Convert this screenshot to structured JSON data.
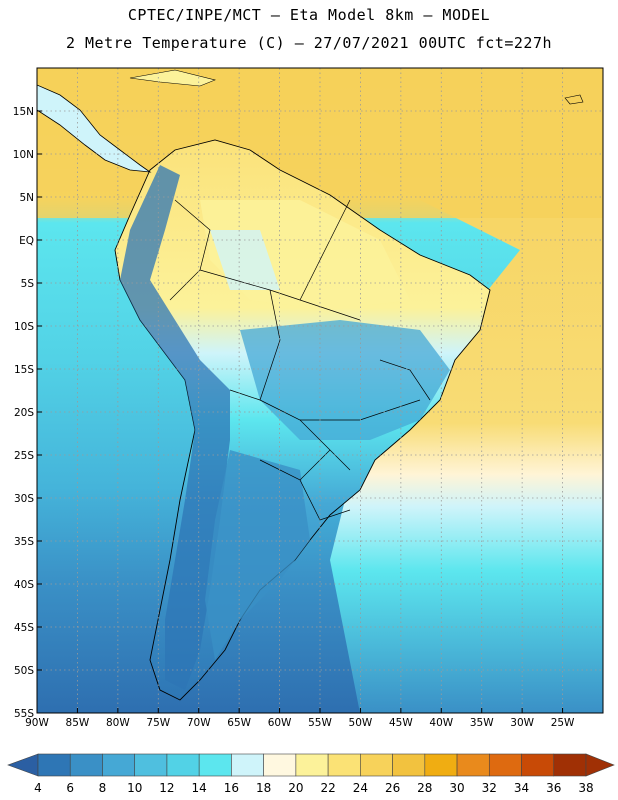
{
  "header": {
    "line1": "CPTEC/INPE/MCT —  Eta Model 8km — MODEL",
    "line2": "2 Metre Temperature (C) — 27/07/2021 00UTC fct=227h"
  },
  "map": {
    "lat_labels": [
      "15N",
      "10N",
      "5N",
      "EQ",
      "5S",
      "10S",
      "15S",
      "20S",
      "25S",
      "30S",
      "35S",
      "40S",
      "45S",
      "50S",
      "55S"
    ],
    "lat_values": [
      15,
      10,
      5,
      0,
      -5,
      -10,
      -15,
      -20,
      -25,
      -30,
      -35,
      -40,
      -45,
      -50,
      -55
    ],
    "lon_labels": [
      "90W",
      "85W",
      "80W",
      "75W",
      "70W",
      "65W",
      "60W",
      "55W",
      "50W",
      "45W",
      "40W",
      "35W",
      "30W",
      "25W"
    ],
    "lon_values": [
      -90,
      -85,
      -80,
      -75,
      -70,
      -65,
      -60,
      -55,
      -50,
      -45,
      -40,
      -35,
      -30,
      -25
    ],
    "lon_range": [
      -90,
      -20
    ],
    "lat_range": [
      -55,
      20
    ],
    "grid": true
  },
  "legend": {
    "ticks": [
      "4",
      "6",
      "8",
      "10",
      "12",
      "14",
      "16",
      "18",
      "20",
      "22",
      "24",
      "26",
      "28",
      "30",
      "32",
      "34",
      "36",
      "38"
    ],
    "colors": [
      "#2b5fa3",
      "#2e76b5",
      "#3a90c6",
      "#45a8d5",
      "#4fbfdf",
      "#52d2e6",
      "#5ce6ee",
      "#cff4fa",
      "#fff8e0",
      "#fcf29a",
      "#fbe275",
      "#f7d25a",
      "#f2c23f",
      "#f0ad12",
      "#e98a1c",
      "#de6a10",
      "#c84a06",
      "#a03005"
    ],
    "left_arrow_color": "#2b5fa3",
    "right_arrow_color": "#a03005"
  },
  "colors": {
    "ocean_warm": "#f5ce4e",
    "ocean_mid": "#5ce6ee",
    "ocean_cool": "#4fbfdf",
    "ocean_cold": "#2e76b5",
    "land_warm": "#fcf29a",
    "land_cool": "#45a8d5",
    "land_cold": "#2e76b5"
  }
}
